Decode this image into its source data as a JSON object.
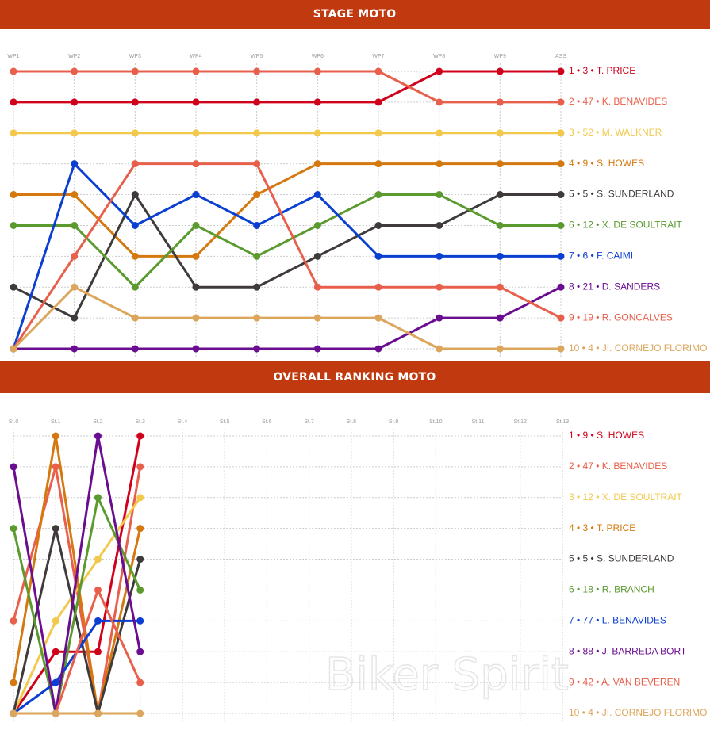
{
  "chart_data": [
    {
      "type": "line",
      "title": "STAGE MOTO",
      "categories": [
        "WP1",
        "WP2",
        "WP3",
        "WP4",
        "WP5",
        "WP6",
        "WP7",
        "WP8",
        "WP9",
        "ASS"
      ],
      "ylim": [
        1,
        10
      ],
      "y_inverted": true,
      "yticks": [
        1,
        2,
        3,
        4,
        5,
        6,
        7,
        8,
        9,
        10
      ],
      "grid": true,
      "series": [
        {
          "name": "1 • 3 • T. PRICE",
          "color": "#d0021b",
          "values": [
            2,
            2,
            2,
            2,
            2,
            2,
            2,
            1,
            1,
            1
          ]
        },
        {
          "name": "2 • 47 • K. BENAVIDES",
          "color": "#e8604c",
          "values": [
            1,
            1,
            1,
            1,
            1,
            1,
            1,
            2,
            2,
            2
          ]
        },
        {
          "name": "3 • 52 • M. WALKNER",
          "color": "#f2c94c",
          "values": [
            3,
            3,
            3,
            3,
            3,
            3,
            3,
            3,
            3,
            3
          ]
        },
        {
          "name": "4 • 9 • S. HOWES",
          "color": "#d4780f",
          "values": [
            5,
            5,
            7,
            7,
            5,
            4,
            4,
            4,
            4,
            4
          ]
        },
        {
          "name": "5 • 5 • S. SUNDERLAND",
          "color": "#403b3b",
          "values": [
            8,
            9,
            5,
            8,
            8,
            7,
            6,
            6,
            5,
            5
          ]
        },
        {
          "name": "6 • 12 • X. DE SOULTRAIT",
          "color": "#5a9a2f",
          "values": [
            6,
            6,
            8,
            6,
            7,
            6,
            5,
            5,
            6,
            6
          ]
        },
        {
          "name": "7 • 6 • F. CAIMI",
          "color": "#0b3fd1",
          "values": [
            10,
            4,
            6,
            5,
            6,
            5,
            7,
            7,
            7,
            7
          ]
        },
        {
          "name": "8 • 21 • D. SANDERS",
          "color": "#6a0d91",
          "values": [
            10,
            10,
            10,
            10,
            10,
            10,
            10,
            9,
            9,
            8
          ]
        },
        {
          "name": "9 • 19 • R. GONCALVES",
          "color": "#e8604c",
          "values": [
            10,
            7,
            4,
            4,
            4,
            8,
            8,
            8,
            8,
            9
          ]
        },
        {
          "name": "10 • 4 • JI. CORNEJO FLORIMO",
          "color": "#dca65c",
          "values": [
            10,
            8,
            9,
            9,
            9,
            9,
            9,
            10,
            10,
            10
          ]
        }
      ]
    },
    {
      "type": "line",
      "title": "OVERALL RANKING MOTO",
      "categories": [
        "St.0",
        "St.1",
        "St.2",
        "St.3",
        "St.4",
        "St.5",
        "St.6",
        "St.7",
        "St.8",
        "St.9",
        "St.10",
        "St.11",
        "St.12",
        "St.13"
      ],
      "ylim": [
        1,
        10
      ],
      "y_inverted": true,
      "yticks": [
        1,
        2,
        3,
        4,
        5,
        6,
        7,
        8,
        9,
        10
      ],
      "grid": true,
      "watermark": "Biker Spirit",
      "series": [
        {
          "name": "1 • 9 • S. HOWES",
          "color": "#d0021b",
          "values": [
            10,
            8,
            8,
            1,
            null,
            null,
            null,
            null,
            null,
            null,
            null,
            null,
            null,
            null
          ]
        },
        {
          "name": "2 • 47 • K. BENAVIDES",
          "color": "#e8604c",
          "values": [
            7,
            2,
            10,
            2,
            null,
            null,
            null,
            null,
            null,
            null,
            null,
            null,
            null,
            null
          ]
        },
        {
          "name": "3 • 12 • X. DE SOULTRAIT",
          "color": "#f2c94c",
          "values": [
            10,
            7,
            5,
            3,
            null,
            null,
            null,
            null,
            null,
            null,
            null,
            null,
            null,
            null
          ]
        },
        {
          "name": "4 • 3 • T. PRICE",
          "color": "#d4780f",
          "values": [
            9,
            1,
            10,
            4,
            null,
            null,
            null,
            null,
            null,
            null,
            null,
            null,
            null,
            null
          ]
        },
        {
          "name": "5 • 5 • S. SUNDERLAND",
          "color": "#403b3b",
          "values": [
            10,
            4,
            10,
            5,
            null,
            null,
            null,
            null,
            null,
            null,
            null,
            null,
            null,
            null
          ]
        },
        {
          "name": "6 • 18 • R. BRANCH",
          "color": "#5a9a2f",
          "values": [
            4,
            10,
            3,
            6,
            null,
            null,
            null,
            null,
            null,
            null,
            null,
            null,
            null,
            null
          ]
        },
        {
          "name": "7 • 77 • L. BENAVIDES",
          "color": "#0b3fd1",
          "values": [
            10,
            9,
            7,
            7,
            null,
            null,
            null,
            null,
            null,
            null,
            null,
            null,
            null,
            null
          ]
        },
        {
          "name": "8 • 88 • J. BARREDA BORT",
          "color": "#6a0d91",
          "values": [
            2,
            10,
            1,
            8,
            null,
            null,
            null,
            null,
            null,
            null,
            null,
            null,
            null,
            null
          ]
        },
        {
          "name": "9 • 42 • A. VAN BEVEREN",
          "color": "#e8604c",
          "values": [
            10,
            10,
            6,
            9,
            null,
            null,
            null,
            null,
            null,
            null,
            null,
            null,
            null,
            null
          ]
        },
        {
          "name": "10 • 4 • JI. CORNEJO FLORIMO",
          "color": "#dca65c",
          "values": [
            10,
            10,
            10,
            10,
            null,
            null,
            null,
            null,
            null,
            null,
            null,
            null,
            null,
            null
          ]
        }
      ]
    }
  ]
}
